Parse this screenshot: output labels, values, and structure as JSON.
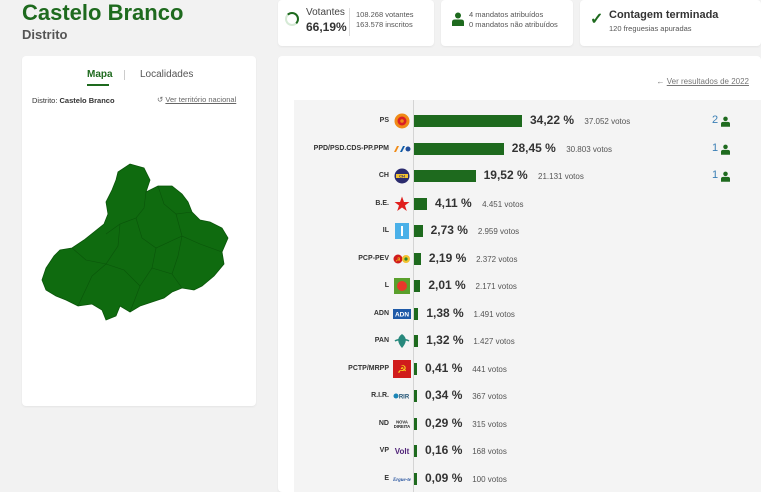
{
  "header": {
    "title": "Castelo Branco",
    "subtitle": "Distrito"
  },
  "stats": {
    "votantes_label": "Votantes",
    "votantes_pct": "66,19%",
    "votantes_count": "108.268 votantes",
    "inscritos_count": "163.578 inscritos",
    "mandatos_atribuidos": "4 mandatos atribuídos",
    "mandatos_nao_atribuidos": "0 mandatos não atribuídos",
    "contagem_title": "Contagem terminada",
    "freguesias": "120 freguesias apuradas",
    "votantes_fraction": 0.6619
  },
  "map_panel": {
    "tab_mapa": "Mapa",
    "tab_localidades": "Localidades",
    "distrito_label": "Distrito:",
    "distrito_value": "Castelo Branco",
    "ver_territorio": "Ver território nacional",
    "map_color": "#0f6b0f"
  },
  "results": {
    "link_2022": "Ver resultados de 2022",
    "bar_color": "#1e6a1e",
    "parties": [
      {
        "name": "PS",
        "pct": 34.22,
        "pct_label": "34,22 %",
        "votes": "37.052 votos",
        "seats": "2",
        "logo": "ps"
      },
      {
        "name": "PPD/PSD.CDS-PP.PPM",
        "pct": 28.45,
        "pct_label": "28,45 %",
        "votes": "30.803 votos",
        "seats": "1",
        "logo": "ad"
      },
      {
        "name": "CH",
        "pct": 19.52,
        "pct_label": "19,52 %",
        "votes": "21.131 votos",
        "seats": "1",
        "logo": "ch"
      },
      {
        "name": "B.E.",
        "pct": 4.11,
        "pct_label": "4,11 %",
        "votes": "4.451 votos",
        "seats": "",
        "logo": "be"
      },
      {
        "name": "IL",
        "pct": 2.73,
        "pct_label": "2,73 %",
        "votes": "2.959 votos",
        "seats": "",
        "logo": "il"
      },
      {
        "name": "PCP-PEV",
        "pct": 2.19,
        "pct_label": "2,19 %",
        "votes": "2.372 votos",
        "seats": "",
        "logo": "cdu"
      },
      {
        "name": "L",
        "pct": 2.01,
        "pct_label": "2,01 %",
        "votes": "2.171 votos",
        "seats": "",
        "logo": "l"
      },
      {
        "name": "ADN",
        "pct": 1.38,
        "pct_label": "1,38 %",
        "votes": "1.491 votos",
        "seats": "",
        "logo": "adn"
      },
      {
        "name": "PAN",
        "pct": 1.32,
        "pct_label": "1,32 %",
        "votes": "1.427 votos",
        "seats": "",
        "logo": "pan"
      },
      {
        "name": "PCTP/MRPP",
        "pct": 0.41,
        "pct_label": "0,41 %",
        "votes": "441 votos",
        "seats": "",
        "logo": "mrpp"
      },
      {
        "name": "R.I.R.",
        "pct": 0.34,
        "pct_label": "0,34 %",
        "votes": "367 votos",
        "seats": "",
        "logo": "rir"
      },
      {
        "name": "ND",
        "pct": 0.29,
        "pct_label": "0,29 %",
        "votes": "315 votos",
        "seats": "",
        "logo": "nd"
      },
      {
        "name": "VP",
        "pct": 0.16,
        "pct_label": "0,16 %",
        "votes": "168 votos",
        "seats": "",
        "logo": "volt"
      },
      {
        "name": "E",
        "pct": 0.09,
        "pct_label": "0,09 %",
        "votes": "100 votos",
        "seats": "",
        "logo": "e"
      }
    ]
  }
}
